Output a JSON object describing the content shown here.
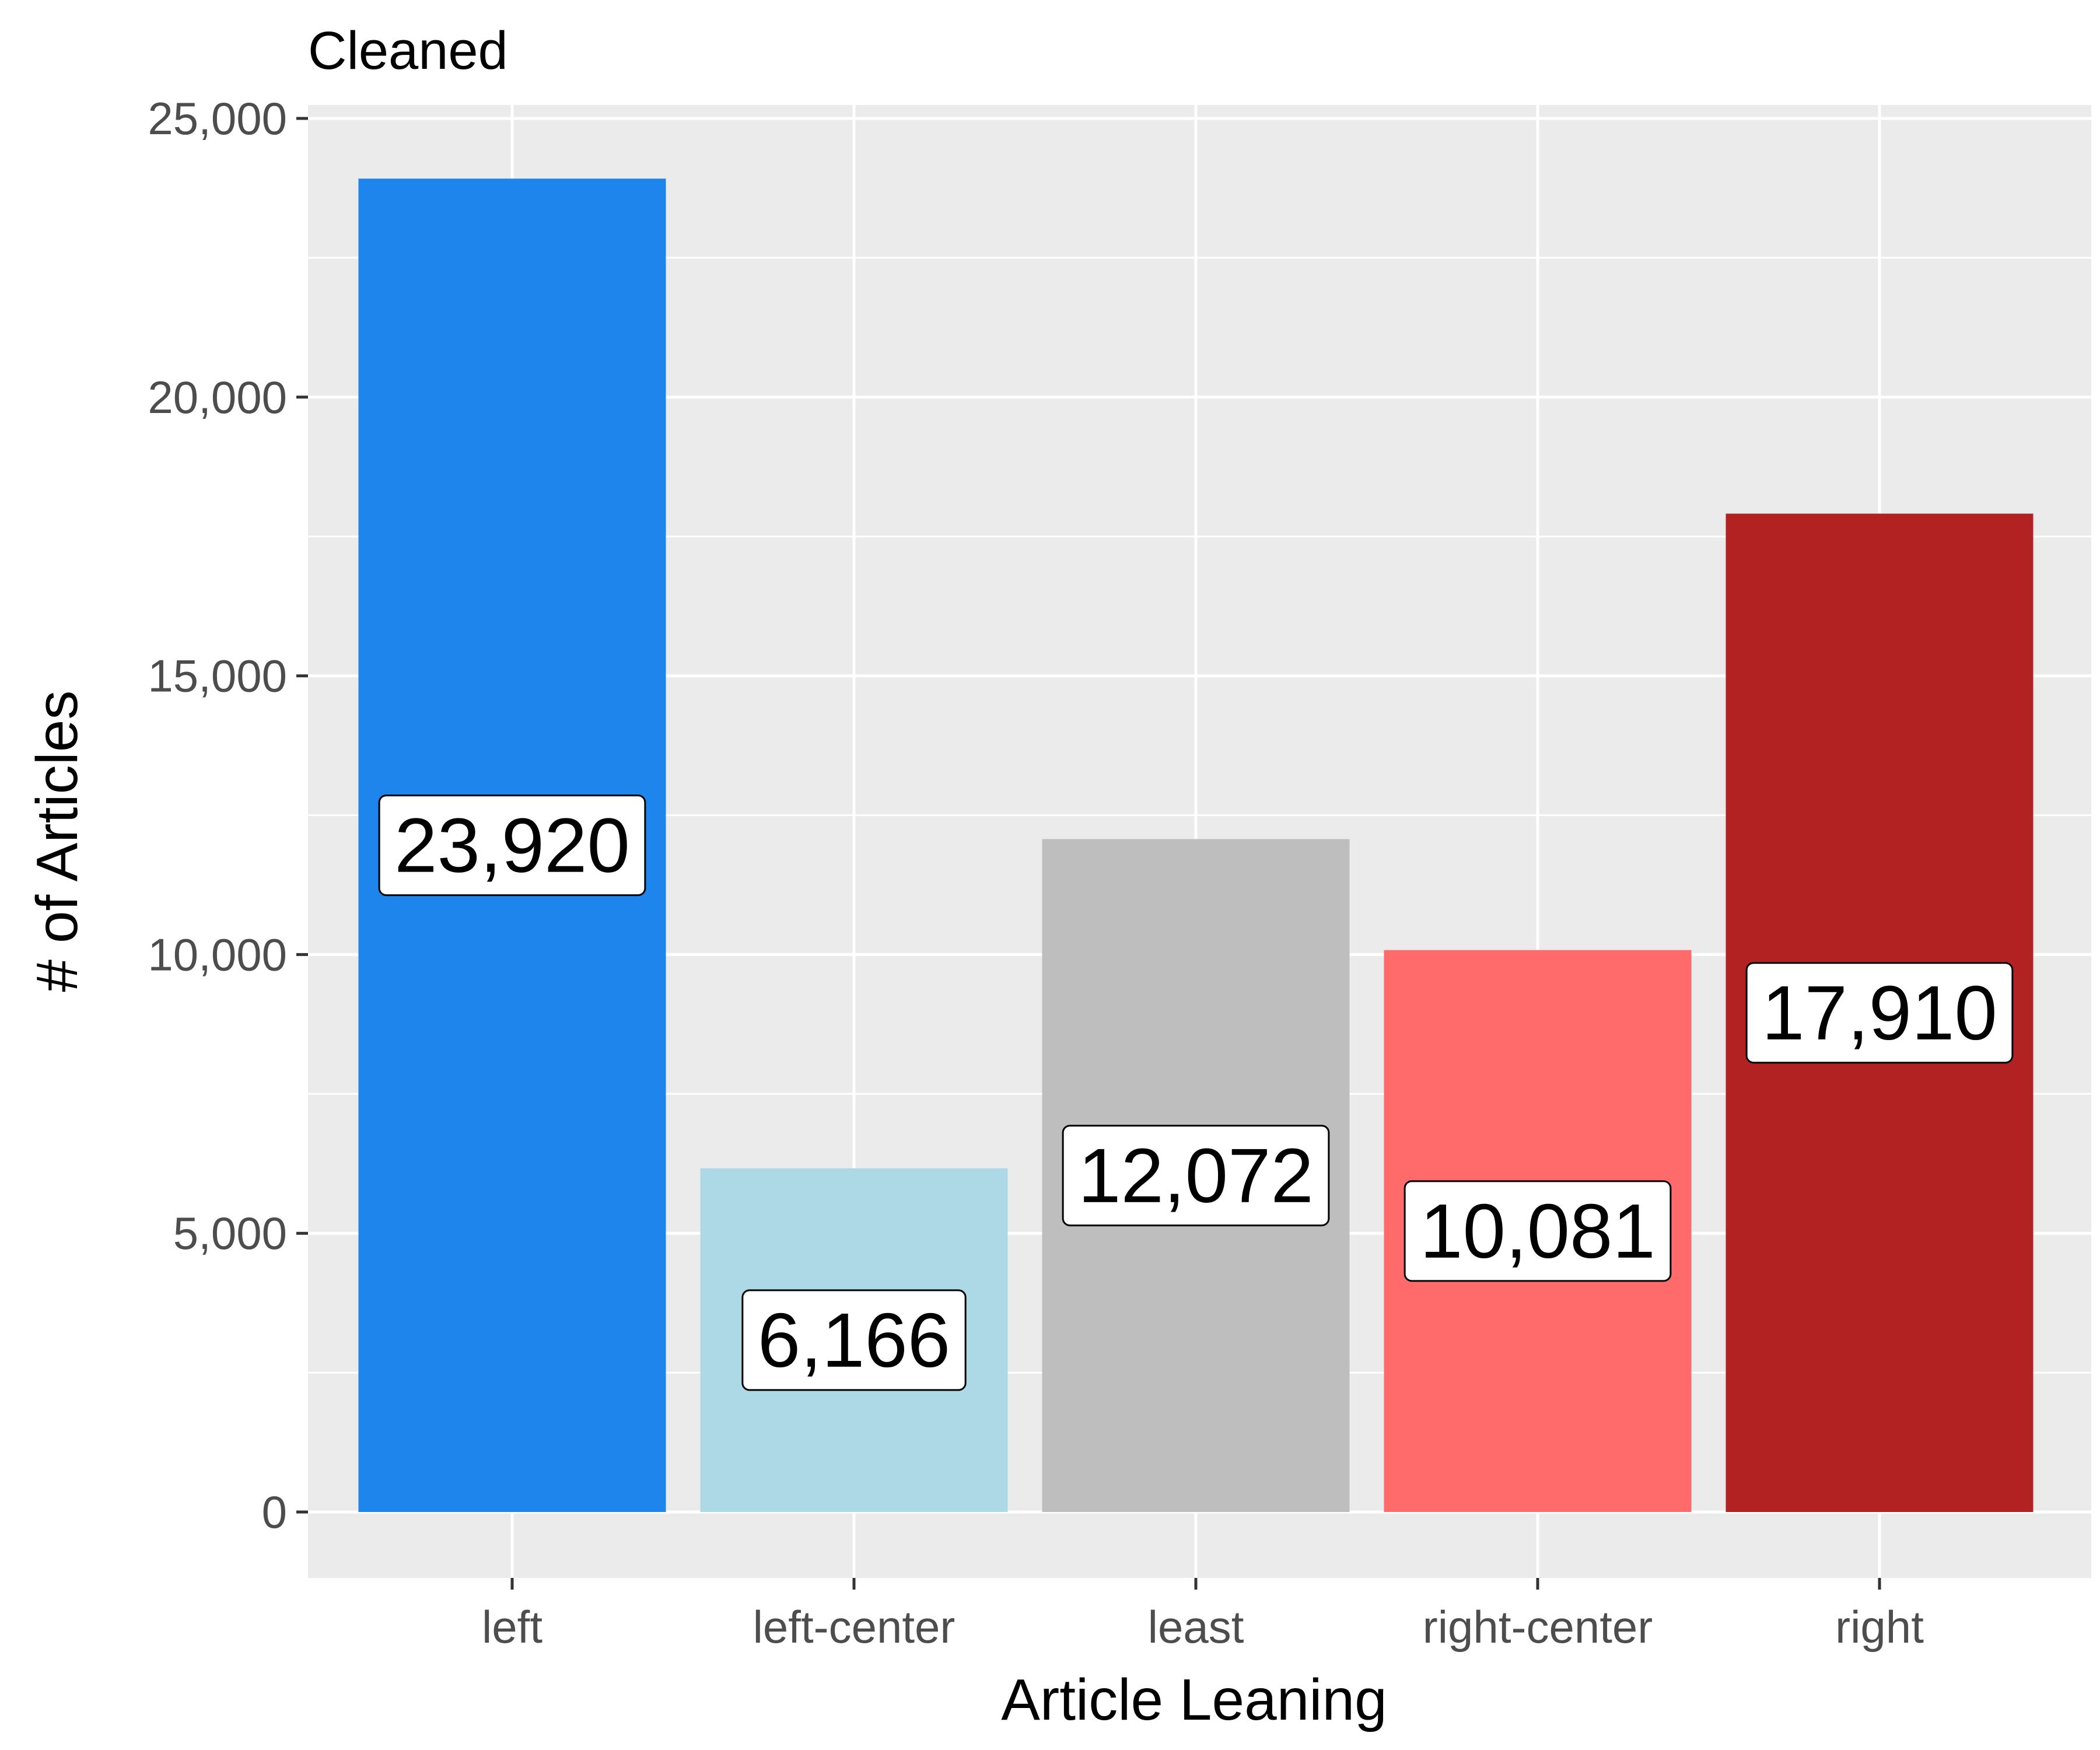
{
  "chart_data": {
    "type": "bar",
    "title": "Cleaned",
    "xlabel": "Article Leaning",
    "ylabel": "# of Articles",
    "categories": [
      "left",
      "left-center",
      "least",
      "right-center",
      "right"
    ],
    "values": [
      23920,
      6166,
      12072,
      10081,
      17910
    ],
    "value_labels": [
      "23,920",
      "6,166",
      "12,072",
      "10,081",
      "17,910"
    ],
    "colors": [
      "#1e85ec",
      "#add8e6",
      "#bebebe",
      "#ff6b6b",
      "#b22222"
    ],
    "ylim": [
      0,
      25000
    ],
    "y_ticks": [
      0,
      5000,
      10000,
      15000,
      20000,
      25000
    ],
    "y_tick_labels": [
      "0",
      "5,000",
      "10,000",
      "15,000",
      "20,000",
      "25,000"
    ],
    "grid": true,
    "legend": "none",
    "panel_background": "#ebebeb"
  }
}
